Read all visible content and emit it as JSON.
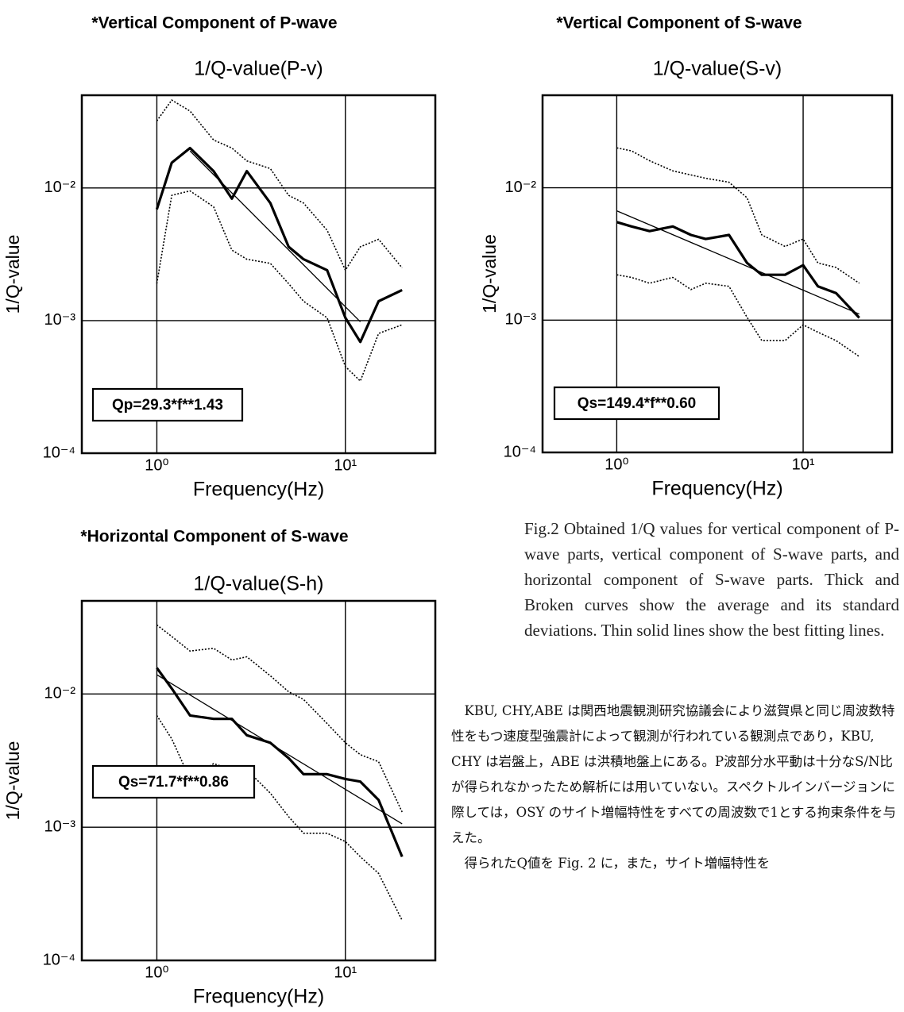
{
  "chart_data": [
    {
      "type": "line",
      "heading": "*Vertical Component of P-wave",
      "title": "1/Q-value(P-v)",
      "xlabel": "Frequency(Hz)",
      "ylabel": "1/Q-value",
      "annotation": "Qp=29.3*f**1.43",
      "xscale": "log",
      "yscale": "log",
      "grid": true,
      "xlim": [
        0.4,
        30
      ],
      "ylim": [
        0.0001,
        0.05
      ],
      "xticks": [
        {
          "value": 1,
          "label": "10⁰"
        },
        {
          "value": 10,
          "label": "10¹"
        }
      ],
      "yticks": [
        {
          "value": 0.0001,
          "label": "10⁻⁴"
        },
        {
          "value": 0.001,
          "label": "10⁻³"
        },
        {
          "value": 0.01,
          "label": "10⁻²"
        }
      ],
      "x": [
        1,
        1.2,
        1.5,
        2,
        2.5,
        3,
        4,
        5,
        6,
        8,
        10,
        12,
        15,
        20
      ],
      "series": [
        {
          "style": "thick",
          "color": "#000000",
          "values": [
            0.0069,
            0.0155,
            0.02,
            0.0134,
            0.0083,
            0.0134,
            0.0077,
            0.0036,
            0.0029,
            0.0024,
            0.00105,
            0.00069,
            0.0014,
            0.0017
          ]
        },
        {
          "style": "dotted",
          "color": "#000000",
          "values": [
            0.032,
            0.046,
            0.038,
            0.023,
            0.02,
            0.016,
            0.014,
            0.0088,
            0.0077,
            0.0048,
            0.0024,
            0.0036,
            0.0041,
            0.0025
          ]
        },
        {
          "style": "dotted",
          "color": "#000000",
          "values": [
            0.0019,
            0.0088,
            0.0095,
            0.0072,
            0.0034,
            0.0029,
            0.0027,
            0.0019,
            0.0014,
            0.00105,
            0.00045,
            0.00035,
            0.0008,
            0.00093
          ]
        },
        {
          "style": "thin",
          "color": "#000000",
          "x": [
            1.5,
            12
          ],
          "values": [
            0.019,
            0.00098
          ]
        }
      ]
    },
    {
      "type": "line",
      "heading": "*Vertical Component of S-wave",
      "title": "1/Q-value(S-v)",
      "xlabel": "Frequency(Hz)",
      "ylabel": "1/Q-value",
      "annotation": "Qs=149.4*f**0.60",
      "xscale": "log",
      "yscale": "log",
      "grid": true,
      "xlim": [
        0.4,
        30
      ],
      "ylim": [
        0.0001,
        0.05
      ],
      "xticks": [
        {
          "value": 1,
          "label": "10⁰"
        },
        {
          "value": 10,
          "label": "10¹"
        }
      ],
      "yticks": [
        {
          "value": 0.0001,
          "label": "10⁻⁴"
        },
        {
          "value": 0.001,
          "label": "10⁻³"
        },
        {
          "value": 0.01,
          "label": "10⁻²"
        }
      ],
      "x": [
        1,
        1.2,
        1.5,
        2,
        2.5,
        3,
        4,
        5,
        6,
        8,
        10,
        12,
        15,
        20
      ],
      "series": [
        {
          "style": "thick",
          "color": "#000000",
          "values": [
            0.0055,
            0.0051,
            0.0047,
            0.0051,
            0.0044,
            0.0041,
            0.0044,
            0.0027,
            0.0022,
            0.0022,
            0.0026,
            0.0018,
            0.0016,
            0.00104
          ]
        },
        {
          "style": "dotted",
          "color": "#000000",
          "values": [
            0.02,
            0.019,
            0.016,
            0.0134,
            0.0125,
            0.0118,
            0.011,
            0.0084,
            0.0044,
            0.0036,
            0.0041,
            0.0027,
            0.0025,
            0.0019
          ]
        },
        {
          "style": "dotted",
          "color": "#000000",
          "values": [
            0.0022,
            0.0021,
            0.0019,
            0.0021,
            0.0017,
            0.0019,
            0.0018,
            0.00105,
            0.0007,
            0.0007,
            0.00092,
            0.00081,
            0.0007,
            0.00053
          ]
        },
        {
          "style": "thin",
          "color": "#000000",
          "x": [
            1,
            20
          ],
          "values": [
            0.00669,
            0.00111
          ]
        }
      ]
    },
    {
      "type": "line",
      "heading": "*Horizontal Component of S-wave",
      "title": "1/Q-value(S-h)",
      "xlabel": "Frequency(Hz)",
      "ylabel": "1/Q-value",
      "annotation": "Qs=71.7*f**0.86",
      "xscale": "log",
      "yscale": "log",
      "grid": true,
      "xlim": [
        0.4,
        30
      ],
      "ylim": [
        0.0001,
        0.05
      ],
      "xticks": [
        {
          "value": 1,
          "label": "10⁰"
        },
        {
          "value": 10,
          "label": "10¹"
        }
      ],
      "yticks": [
        {
          "value": 0.0001,
          "label": "10⁻⁴"
        },
        {
          "value": 0.001,
          "label": "10⁻³"
        },
        {
          "value": 0.01,
          "label": "10⁻²"
        }
      ],
      "x": [
        1,
        1.2,
        1.5,
        2,
        2.5,
        3,
        4,
        5,
        6,
        8,
        10,
        12,
        15,
        20
      ],
      "series": [
        {
          "style": "thick",
          "color": "#000000",
          "values": [
            0.0157,
            0.011,
            0.0069,
            0.0065,
            0.0065,
            0.0049,
            0.0043,
            0.0033,
            0.0025,
            0.0025,
            0.0023,
            0.0022,
            0.0016,
            0.0006
          ]
        },
        {
          "style": "dotted",
          "color": "#000000",
          "values": [
            0.033,
            0.027,
            0.021,
            0.022,
            0.018,
            0.019,
            0.0137,
            0.0104,
            0.0091,
            0.006,
            0.0043,
            0.0035,
            0.0031,
            0.0013
          ]
        },
        {
          "style": "dotted",
          "color": "#000000",
          "values": [
            0.0069,
            0.0046,
            0.0023,
            0.003,
            0.0027,
            0.0027,
            0.0018,
            0.0012,
            0.0009,
            0.0009,
            0.00078,
            0.0006,
            0.00045,
            0.0002
          ]
        },
        {
          "style": "thin",
          "color": "#000000",
          "x": [
            1,
            20
          ],
          "values": [
            0.01395,
            0.00106
          ]
        }
      ]
    }
  ],
  "caption": "Fig.2 Obtained 1/Q values for vertical component of P-wave parts, vertical component of S-wave parts, and horizontal component of S-wave parts. Thick and Broken curves show the average and its standard deviations. Thin solid lines show the best fitting lines.",
  "paragraphs": [
    "KBU, CHY,ABE は関西地震観測研究協議会により滋賀県と同じ周波数特性をもつ速度型強震計によって観測が行われている観測点であり，KBU, CHY は岩盤上，ABE は洪積地盤上にある。P波部分水平動は十分なS/N比が得られなかったため解析には用いていない。スペクトルインバージョンに際しては，OSY のサイト増幅特性をすべての周波数で1とする拘束条件を与えた。",
    "得られたQ値を Fig. 2 に，また，サイト増幅特性を"
  ]
}
